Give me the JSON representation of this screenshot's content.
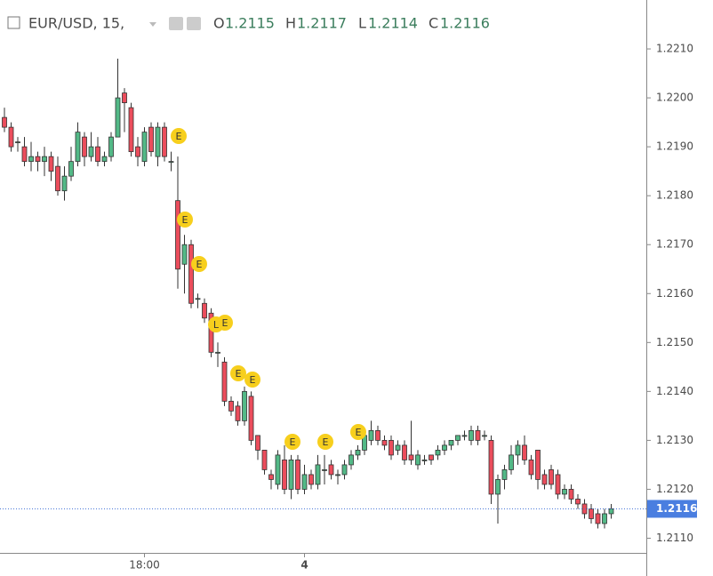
{
  "chart_data": {
    "type": "candlestick",
    "title": "EUR/USD, 15,",
    "ohlc_legend": [
      {
        "label": "O",
        "value": 1.2115
      },
      {
        "label": "H",
        "value": 1.2117
      },
      {
        "label": "L",
        "value": 1.2114
      },
      {
        "label": "C",
        "value": 1.2116
      }
    ],
    "up_color": "#53b987",
    "down_color": "#eb4d5c",
    "open": [
      1.2196,
      1.2194,
      1.2191,
      1.219,
      1.2187,
      1.2188,
      1.2187,
      1.2188,
      1.2186,
      1.2181,
      1.2184,
      1.2187,
      1.2192,
      1.2188,
      1.219,
      1.2187,
      1.2188,
      1.2192,
      1.2201,
      1.2198,
      1.219,
      1.2187,
      1.2194,
      1.2188,
      1.2194,
      1.2187,
      1.2179,
      1.2166,
      1.217,
      1.2159,
      1.2158,
      1.2156,
      1.2148,
      1.2146,
      1.2138,
      1.2137,
      1.2134,
      1.2139,
      1.2131,
      1.2128,
      1.2123,
      1.2121,
      1.2126,
      1.212,
      1.2126,
      1.212,
      1.2123,
      1.2121,
      1.2124,
      1.2125,
      1.2123,
      1.2123,
      1.2125,
      1.2127,
      1.2128,
      1.213,
      1.2132,
      1.213,
      1.213,
      1.2128,
      1.2129,
      1.2127,
      1.2125,
      1.2126,
      1.2127,
      1.2127,
      1.2128,
      1.2129,
      1.213,
      1.2131,
      1.213,
      1.2132,
      1.2131,
      1.213,
      1.2119,
      1.2122,
      1.2124,
      1.2127,
      1.2129,
      1.2126,
      1.2128,
      1.2123,
      1.2124,
      1.2123,
      1.2119,
      1.212,
      1.2118,
      1.2117,
      1.2116,
      1.2115,
      1.2113,
      1.2115
    ],
    "high": [
      1.2198,
      1.2195,
      1.2192,
      1.2192,
      1.2191,
      1.2189,
      1.219,
      1.2189,
      1.2188,
      1.2186,
      1.219,
      1.2195,
      1.2193,
      1.2193,
      1.2192,
      1.2189,
      1.2193,
      1.2208,
      1.2202,
      1.2199,
      1.2192,
      1.2194,
      1.2195,
      1.2195,
      1.2195,
      1.2189,
      1.2188,
      1.2172,
      1.2171,
      1.216,
      1.2159,
      1.2157,
      1.215,
      1.2147,
      1.2139,
      1.2138,
      1.2141,
      1.214,
      1.2131,
      1.2128,
      1.2124,
      1.2128,
      1.2129,
      1.2127,
      1.2127,
      1.2125,
      1.2124,
      1.2127,
      1.2127,
      1.2126,
      1.2124,
      1.2126,
      1.2128,
      1.2129,
      1.2132,
      1.2134,
      1.2133,
      1.2131,
      1.2131,
      1.213,
      1.213,
      1.2134,
      1.2128,
      1.2127,
      1.2127,
      1.2129,
      1.213,
      1.213,
      1.2131,
      1.2132,
      1.2133,
      1.2133,
      1.2132,
      1.2131,
      1.2123,
      1.2125,
      1.2129,
      1.213,
      1.2131,
      1.2127,
      1.2128,
      1.2124,
      1.2125,
      1.2124,
      1.2121,
      1.2121,
      1.2119,
      1.2118,
      1.2117,
      1.2116,
      1.2116,
      1.2117
    ],
    "low": [
      1.2193,
      1.2189,
      1.2189,
      1.2186,
      1.2185,
      1.2185,
      1.2184,
      1.2183,
      1.218,
      1.2179,
      1.2183,
      1.2186,
      1.2186,
      1.2187,
      1.2186,
      1.2186,
      1.2187,
      1.2192,
      1.2193,
      1.2188,
      1.2186,
      1.2186,
      1.2188,
      1.2186,
      1.2187,
      1.2185,
      1.2161,
      1.216,
      1.2157,
      1.2157,
      1.2154,
      1.2147,
      1.2145,
      1.2137,
      1.2135,
      1.2133,
      1.2133,
      1.2129,
      1.2126,
      1.2123,
      1.212,
      1.212,
      1.2119,
      1.2118,
      1.2119,
      1.2119,
      1.212,
      1.212,
      1.2121,
      1.2122,
      1.2121,
      1.2122,
      1.2124,
      1.2126,
      1.2127,
      1.2129,
      1.2129,
      1.2128,
      1.2126,
      1.2127,
      1.2125,
      1.2125,
      1.2124,
      1.2125,
      1.2125,
      1.2126,
      1.2127,
      1.2128,
      1.2129,
      1.213,
      1.2129,
      1.2129,
      1.213,
      1.2117,
      1.2113,
      1.212,
      1.2123,
      1.2125,
      1.2125,
      1.2122,
      1.212,
      1.212,
      1.212,
      1.2118,
      1.2118,
      1.2117,
      1.2116,
      1.2114,
      1.2113,
      1.2112,
      1.2112,
      1.2114
    ],
    "close": [
      1.2194,
      1.219,
      1.2191,
      1.2187,
      1.2188,
      1.2187,
      1.2188,
      1.2185,
      1.2181,
      1.2184,
      1.2187,
      1.2193,
      1.2188,
      1.219,
      1.2187,
      1.2188,
      1.2192,
      1.22,
      1.2199,
      1.2189,
      1.2188,
      1.2193,
      1.2189,
      1.2194,
      1.2188,
      1.2187,
      1.2165,
      1.217,
      1.2158,
      1.2159,
      1.2155,
      1.2148,
      1.2148,
      1.2138,
      1.2136,
      1.2134,
      1.214,
      1.213,
      1.2128,
      1.2124,
      1.2122,
      1.2127,
      1.212,
      1.2126,
      1.212,
      1.2123,
      1.2121,
      1.2125,
      1.2124,
      1.2123,
      1.2123,
      1.2125,
      1.2127,
      1.2128,
      1.2131,
      1.2132,
      1.213,
      1.2129,
      1.2127,
      1.2129,
      1.2126,
      1.2126,
      1.2127,
      1.2126,
      1.2126,
      1.2128,
      1.2129,
      1.213,
      1.2131,
      1.2131,
      1.2132,
      1.213,
      1.2131,
      1.2119,
      1.2122,
      1.2124,
      1.2127,
      1.2129,
      1.2126,
      1.2123,
      1.2122,
      1.2121,
      1.2121,
      1.2119,
      1.212,
      1.2118,
      1.2117,
      1.2115,
      1.2114,
      1.2113,
      1.2115,
      1.2116
    ],
    "xticks": [
      {
        "value": 21,
        "label": "18:00"
      },
      {
        "value": 45,
        "label": "4"
      }
    ],
    "ylim": [
      1.2107,
      1.222
    ],
    "yticks": [
      {
        "value": 1.211,
        "label": "1.2110"
      },
      {
        "value": 1.212,
        "label": "1.2120"
      },
      {
        "value": 1.213,
        "label": "1.2130"
      },
      {
        "value": 1.214,
        "label": "1.2140"
      },
      {
        "value": 1.215,
        "label": "1.2150"
      },
      {
        "value": 1.216,
        "label": "1.2160"
      },
      {
        "value": 1.217,
        "label": "1.2170"
      },
      {
        "value": 1.218,
        "label": "1.2180"
      },
      {
        "value": 1.219,
        "label": "1.2190"
      },
      {
        "value": 1.22,
        "label": "1.2200"
      },
      {
        "value": 1.221,
        "label": "1.2210"
      }
    ],
    "event_markers": [
      "E",
      "E",
      "E",
      "L",
      "E",
      "E",
      "E",
      "E",
      "E",
      "E"
    ]
  }
}
